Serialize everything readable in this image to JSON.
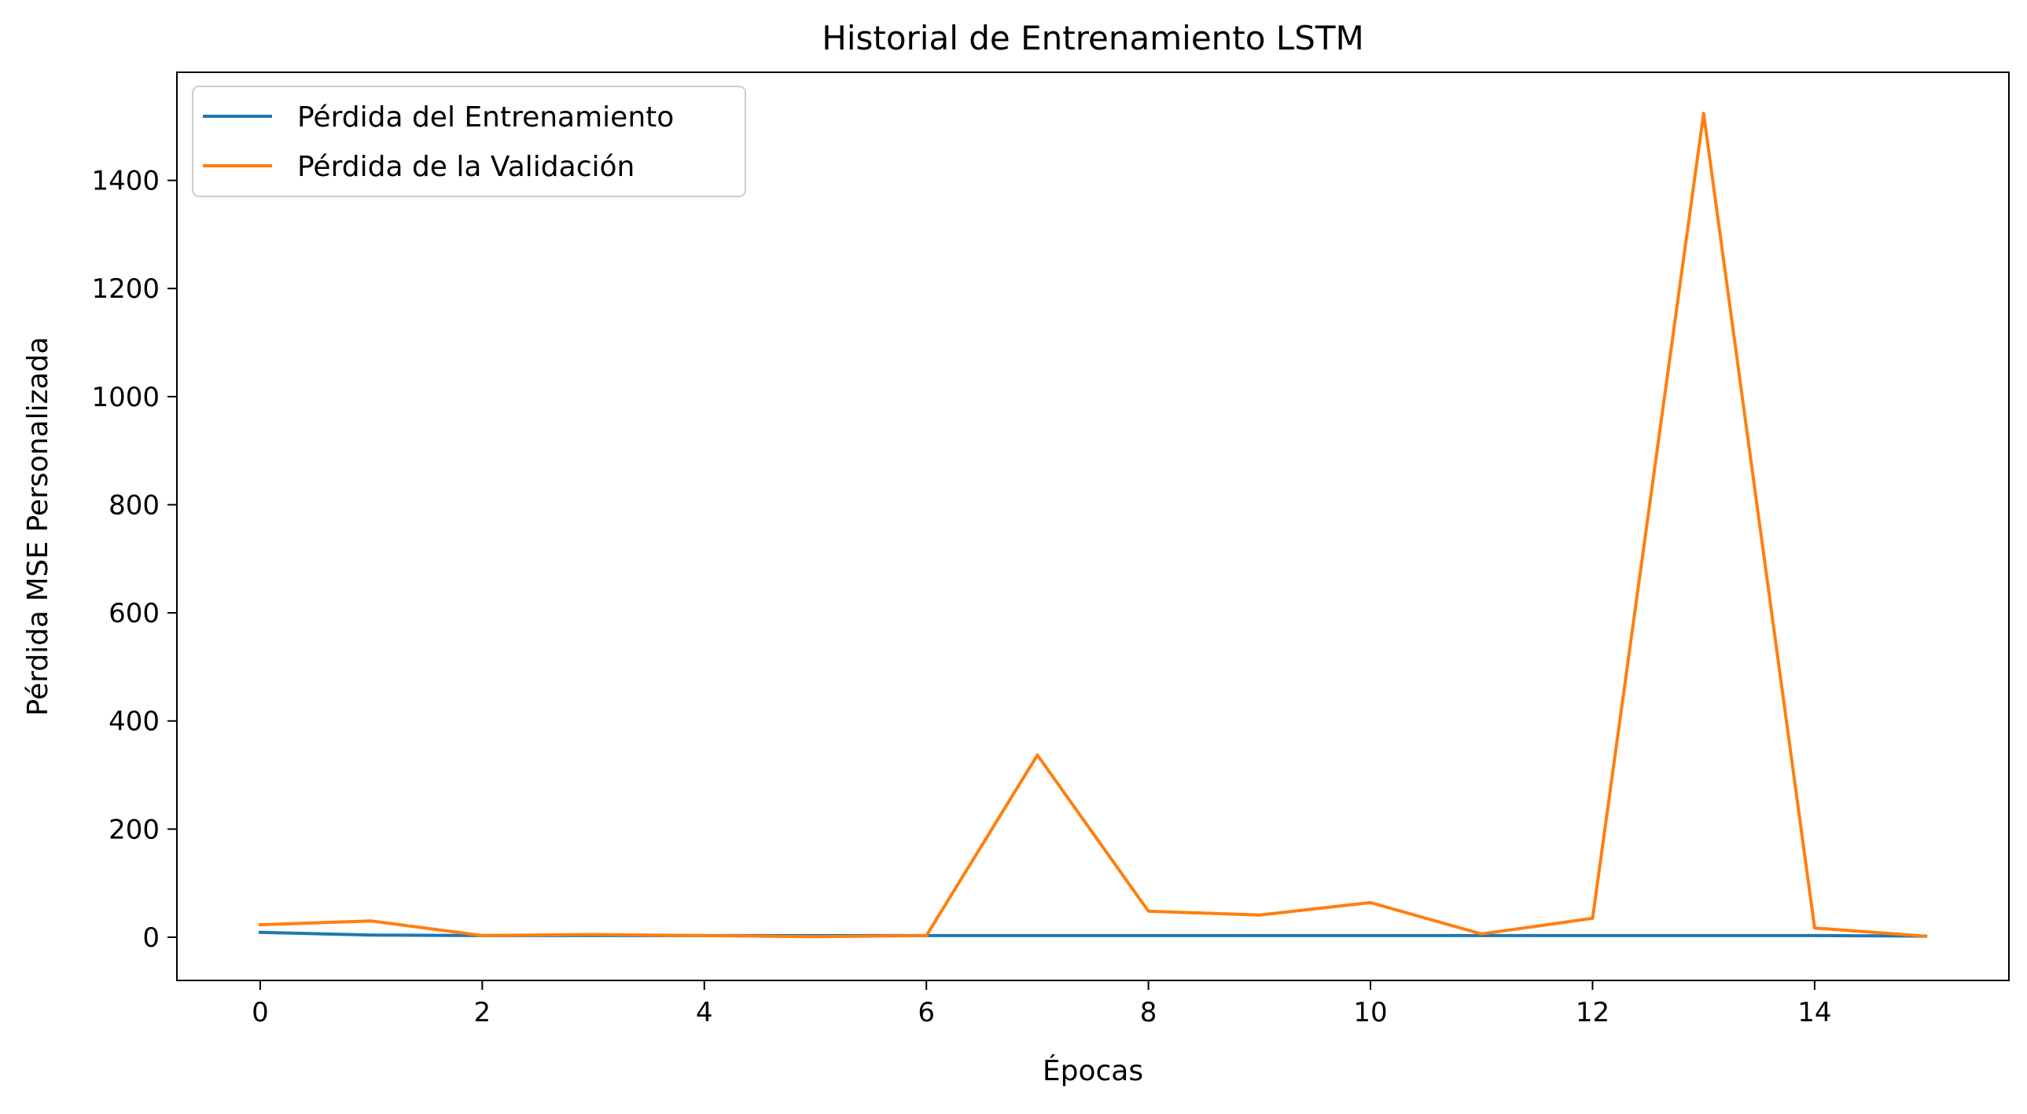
{
  "chart_data": {
    "type": "line",
    "title": "Historial de Entrenamiento LSTM",
    "xlabel": "Épocas",
    "ylabel": "Pérdida MSE Personalizada",
    "xlim": [
      -0.75,
      15.75
    ],
    "ylim": [
      -80,
      1600
    ],
    "xticks": [
      0,
      2,
      4,
      6,
      8,
      10,
      12,
      14
    ],
    "yticks": [
      0,
      200,
      400,
      600,
      800,
      1000,
      1200,
      1400
    ],
    "grid": false,
    "legend_position": "top-left",
    "x": [
      0,
      1,
      2,
      3,
      4,
      5,
      6,
      7,
      8,
      9,
      10,
      11,
      12,
      13,
      14,
      15
    ],
    "series": [
      {
        "name": "Pérdida del Entrenamiento",
        "color": "#1f77b4",
        "values": [
          9,
          4,
          3,
          3,
          3,
          3,
          3,
          3,
          3,
          3,
          3,
          3,
          3,
          3,
          3,
          2
        ]
      },
      {
        "name": "Pérdida de la Validación",
        "color": "#ff7f0e",
        "values": [
          23,
          30,
          3,
          5,
          3,
          1,
          3,
          337,
          48,
          41,
          64,
          6,
          35,
          1524,
          17,
          2
        ]
      }
    ]
  }
}
